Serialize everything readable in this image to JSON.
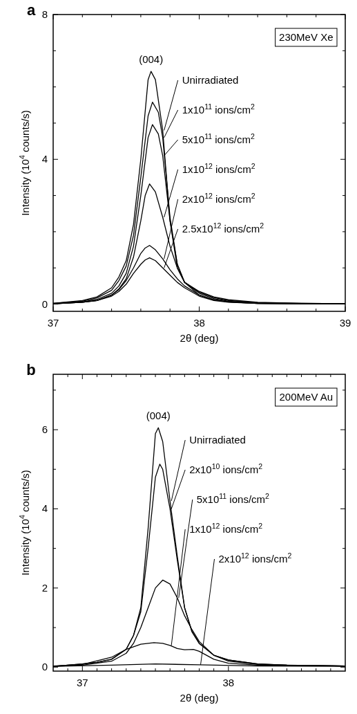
{
  "chart_data": [
    {
      "type": "line",
      "title": "a",
      "xlabel": "2θ (deg)",
      "ylabel": "Intensity (10$^{4}$ counts/s)",
      "xlim": [
        37,
        39
      ],
      "ylim": [
        -0.2,
        8
      ],
      "xticks": [
        37,
        {
          "value": 37.2,
          "label": null
        },
        {
          "value": 37.4,
          "label": null
        },
        {
          "value": 37.6,
          "label": null
        },
        {
          "value": 37.8,
          "label": null
        },
        38,
        {
          "value": 38.2,
          "label": null
        },
        {
          "value": 38.4,
          "label": null
        },
        {
          "value": 38.6,
          "label": null
        },
        {
          "value": 38.8,
          "label": null
        },
        39
      ],
      "yticks": [
        0,
        {
          "value": 1,
          "label": null
        },
        {
          "value": 2,
          "label": null
        },
        {
          "value": 3,
          "label": null
        },
        4,
        {
          "value": 5,
          "label": null
        },
        {
          "value": 6,
          "label": null
        },
        {
          "value": 7,
          "label": null
        },
        8
      ],
      "grid": false,
      "line_style": "solid",
      "annotations": [
        "230MeV Xe",
        {
          "text": "(004)",
          "x": 37.67,
          "y": 6.43
        }
      ],
      "series": [
        {
          "name": "Unirradiated",
          "color": "#000000",
          "x": [
            37,
            37.2,
            37.3,
            37.4,
            37.45,
            37.5,
            37.55,
            37.6,
            37.65,
            37.67,
            37.7,
            37.75,
            37.8,
            37.85,
            37.9,
            38,
            38.1,
            38.2,
            38.4,
            38.7,
            39
          ],
          "values": [
            0.02,
            0.1,
            0.2,
            0.45,
            0.75,
            1.2,
            2.2,
            4.0,
            6.2,
            6.43,
            6.2,
            4.8,
            2.3,
            1.0,
            0.6,
            0.35,
            0.2,
            0.12,
            0.05,
            0.02,
            0.01
          ]
        },
        {
          "name": "1x10$^{11}$  ions/cm$^{2}$",
          "color": "#000000",
          "x": [
            37,
            37.2,
            37.3,
            37.4,
            37.45,
            37.5,
            37.55,
            37.6,
            37.65,
            37.68,
            37.72,
            37.75,
            37.8,
            37.85,
            37.9,
            38,
            38.1,
            38.2,
            38.4,
            38.7,
            39
          ],
          "values": [
            0.02,
            0.08,
            0.17,
            0.38,
            0.65,
            1.05,
            1.9,
            3.5,
            5.2,
            5.58,
            5.3,
            4.6,
            2.4,
            1.1,
            0.6,
            0.33,
            0.18,
            0.1,
            0.04,
            0.02,
            0.01
          ]
        },
        {
          "name": "5x10$^{11}$  ions/cm$^{2}$",
          "color": "#000000",
          "x": [
            37,
            37.2,
            37.3,
            37.4,
            37.45,
            37.5,
            37.55,
            37.6,
            37.65,
            37.68,
            37.72,
            37.75,
            37.8,
            37.85,
            37.9,
            38,
            38.1,
            38.2,
            38.4,
            38.7,
            39
          ],
          "values": [
            0.01,
            0.06,
            0.13,
            0.3,
            0.5,
            0.85,
            1.6,
            3.0,
            4.6,
            4.96,
            4.7,
            4.1,
            2.3,
            1.1,
            0.6,
            0.3,
            0.15,
            0.08,
            0.03,
            0.01,
            0.01
          ]
        },
        {
          "name": "1x10$^{12}$  ions/cm$^{2}$",
          "color": "#000000",
          "x": [
            37,
            37.2,
            37.3,
            37.4,
            37.45,
            37.5,
            37.55,
            37.6,
            37.63,
            37.66,
            37.7,
            37.75,
            37.8,
            37.85,
            37.9,
            38,
            38.1,
            38.2,
            38.4,
            38.7,
            39
          ],
          "values": [
            0.01,
            0.05,
            0.1,
            0.25,
            0.42,
            0.7,
            1.3,
            2.3,
            3.0,
            3.32,
            3.1,
            2.4,
            1.6,
            1.0,
            0.6,
            0.25,
            0.12,
            0.06,
            0.02,
            0.01,
            0.01
          ]
        },
        {
          "name": "2x10$^{12}$  ions/cm$^{2}$",
          "color": "#000000",
          "x": [
            37,
            37.2,
            37.3,
            37.4,
            37.45,
            37.5,
            37.55,
            37.6,
            37.63,
            37.66,
            37.7,
            37.75,
            37.8,
            37.85,
            37.9,
            38,
            38.1,
            38.2,
            38.4,
            38.7,
            39
          ],
          "values": [
            0.01,
            0.05,
            0.1,
            0.25,
            0.4,
            0.65,
            1.0,
            1.4,
            1.55,
            1.62,
            1.5,
            1.25,
            0.95,
            0.7,
            0.5,
            0.25,
            0.12,
            0.06,
            0.02,
            0.01,
            0.01
          ]
        },
        {
          "name": "2.5x10$^{12}$ ions/cm$^{2}$",
          "color": "#000000",
          "x": [
            37,
            37.2,
            37.3,
            37.4,
            37.45,
            37.5,
            37.55,
            37.6,
            37.63,
            37.66,
            37.7,
            37.75,
            37.8,
            37.85,
            37.9,
            38,
            38.1,
            38.2,
            38.4,
            38.7,
            39
          ],
          "values": [
            0.01,
            0.05,
            0.1,
            0.22,
            0.35,
            0.55,
            0.85,
            1.1,
            1.22,
            1.28,
            1.2,
            1.0,
            0.8,
            0.6,
            0.45,
            0.22,
            0.1,
            0.05,
            0.02,
            0.01,
            0.01
          ]
        }
      ]
    },
    {
      "type": "line",
      "title": "b",
      "xlabel": "2θ (deg)",
      "ylabel": "Intensity (10$^{4}$ counts/s)",
      "xlim": [
        36.8,
        38.8
      ],
      "ylim": [
        -0.1,
        7.4
      ],
      "xticks": [
        {
          "value": 36.9,
          "label": null
        },
        37,
        {
          "value": 37.1,
          "label": null
        },
        {
          "value": 37.2,
          "label": null
        },
        {
          "value": 37.3,
          "label": null
        },
        {
          "value": 37.4,
          "label": null
        },
        {
          "value": 37.5,
          "label": null
        },
        {
          "value": 37.6,
          "label": null
        },
        {
          "value": 37.7,
          "label": null
        },
        {
          "value": 37.8,
          "label": null
        },
        {
          "value": 37.9,
          "label": null
        },
        38,
        {
          "value": 38.1,
          "label": null
        },
        {
          "value": 38.2,
          "label": null
        },
        {
          "value": 38.3,
          "label": null
        },
        {
          "value": 38.4,
          "label": null
        },
        {
          "value": 38.5,
          "label": null
        },
        {
          "value": 38.6,
          "label": null
        },
        {
          "value": 38.7,
          "label": null
        }
      ],
      "yticks": [
        0,
        {
          "value": 1,
          "label": null
        },
        2,
        {
          "value": 3,
          "label": null
        },
        4,
        {
          "value": 5,
          "label": null
        },
        6,
        {
          "value": 7,
          "label": null
        }
      ],
      "grid": false,
      "line_style": "solid",
      "annotations": [
        "200MeV Au",
        {
          "text": "(004)",
          "x": 37.52,
          "y": 6.05
        }
      ],
      "series": [
        {
          "name": "Unirradiated",
          "color": "#000000",
          "x": [
            36.8,
            37.0,
            37.1,
            37.2,
            37.3,
            37.35,
            37.4,
            37.45,
            37.5,
            37.52,
            37.55,
            37.6,
            37.65,
            37.7,
            37.75,
            37.8,
            37.9,
            38.0,
            38.2,
            38.4,
            38.8
          ],
          "values": [
            0.02,
            0.08,
            0.12,
            0.2,
            0.45,
            0.8,
            1.5,
            3.5,
            5.9,
            6.05,
            5.7,
            4.2,
            2.8,
            1.5,
            0.9,
            0.6,
            0.3,
            0.18,
            0.08,
            0.05,
            0.03
          ]
        },
        {
          "name": "2x10$^{10}$ ions/cm$^{2}$",
          "color": "#000000",
          "x": [
            36.8,
            37.0,
            37.1,
            37.2,
            37.3,
            37.35,
            37.4,
            37.45,
            37.5,
            37.53,
            37.55,
            37.6,
            37.65,
            37.7,
            37.75,
            37.8,
            37.9,
            38.0,
            38.2,
            38.4,
            38.8
          ],
          "values": [
            0.02,
            0.08,
            0.12,
            0.2,
            0.45,
            0.8,
            1.4,
            3.0,
            4.8,
            5.13,
            5.0,
            4.0,
            2.7,
            1.5,
            0.9,
            0.6,
            0.3,
            0.18,
            0.08,
            0.05,
            0.03
          ]
        },
        {
          "name": "5x10$^{11}$ ions/cm$^{2}$",
          "color": "#000000",
          "x": [
            36.8,
            37.0,
            37.2,
            37.3,
            37.35,
            37.4,
            37.45,
            37.5,
            37.55,
            37.6,
            37.65,
            37.7,
            37.75,
            37.8,
            37.9,
            38.0,
            38.2,
            38.4,
            38.8
          ],
          "values": [
            0.02,
            0.05,
            0.15,
            0.35,
            0.6,
            1.0,
            1.5,
            2.0,
            2.2,
            2.1,
            1.75,
            1.3,
            0.95,
            0.65,
            0.3,
            0.15,
            0.07,
            0.05,
            0.03
          ]
        },
        {
          "name": "1x10$^{12}$ ions/cm$^{2}$",
          "color": "#000000",
          "x": [
            36.8,
            37.0,
            37.2,
            37.3,
            37.4,
            37.49,
            37.55,
            37.6,
            37.65,
            37.7,
            37.76,
            37.8,
            37.9,
            38.0,
            38.2,
            38.8
          ],
          "values": [
            0.03,
            0.07,
            0.25,
            0.45,
            0.58,
            0.62,
            0.6,
            0.55,
            0.47,
            0.44,
            0.45,
            0.4,
            0.2,
            0.1,
            0.05,
            0.03
          ]
        },
        {
          "name": "2x10$^{12}$ ions/cm$^{2}$",
          "color": "#000000",
          "x": [
            36.8,
            37.2,
            37.5,
            37.8,
            38.2,
            38.8
          ],
          "values": [
            0.02,
            0.05,
            0.08,
            0.06,
            0.03,
            0.02
          ]
        }
      ]
    }
  ]
}
